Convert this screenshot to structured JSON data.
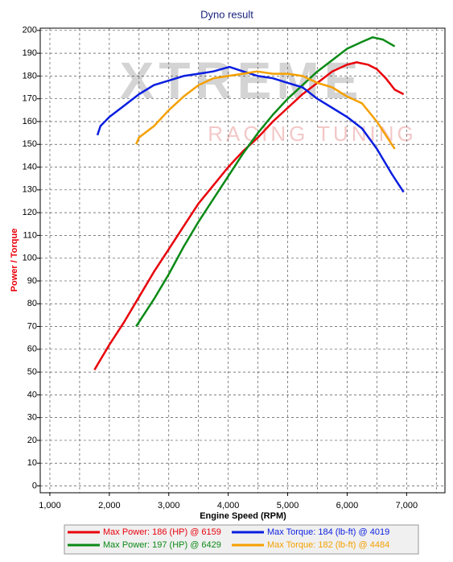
{
  "chart_data": {
    "type": "line",
    "title": "Dyno result",
    "x_label": "Engine Speed (RPM)",
    "y_label": "Power / Torque",
    "watermark": [
      "XTREME",
      "RACING TUNING"
    ],
    "xlim": [
      838,
      7645
    ],
    "ylim": [
      -3,
      201
    ],
    "xticks": [
      {
        "value": 1000,
        "label": "1,000"
      },
      {
        "value": 2000,
        "label": "2,000"
      },
      {
        "value": 3000,
        "label": "3,000"
      },
      {
        "value": 4000,
        "label": "4,000"
      },
      {
        "value": 5000,
        "label": "5,000"
      },
      {
        "value": 6000,
        "label": "6,000"
      },
      {
        "value": 7000,
        "label": "7,000"
      }
    ],
    "xminorticks": [
      1500,
      2500,
      3500,
      4500,
      5500,
      6500,
      7500
    ],
    "yticks": [
      0,
      10,
      20,
      30,
      40,
      50,
      60,
      70,
      80,
      90,
      100,
      110,
      120,
      130,
      140,
      150,
      160,
      170,
      180,
      190,
      200
    ],
    "grid": true,
    "series": [
      {
        "name": "Max Power: 186 (HP) @ 6159",
        "color": "#e8000b",
        "x": [
          1750,
          2000,
          2250,
          2500,
          2750,
          3000,
          3250,
          3500,
          3750,
          4000,
          4250,
          4500,
          4750,
          5000,
          5250,
          5500,
          5750,
          6000,
          6159,
          6350,
          6500,
          6650,
          6800,
          6950
        ],
        "values": [
          51,
          62,
          72,
          83,
          94,
          104,
          114,
          124,
          132,
          140,
          147,
          153,
          160,
          166,
          172,
          177,
          182,
          185,
          186,
          185,
          183,
          179,
          174,
          172
        ]
      },
      {
        "name": "Max Power: 197 (HP) @ 6429",
        "color": "#0a8a16",
        "x": [
          2450,
          2500,
          2750,
          3000,
          3250,
          3500,
          3750,
          4000,
          4250,
          4500,
          4750,
          5000,
          5250,
          5500,
          5750,
          6000,
          6250,
          6429,
          6600,
          6800
        ],
        "values": [
          70,
          72,
          82,
          93,
          105,
          116,
          126,
          136,
          146,
          155,
          163,
          170,
          176,
          182,
          187,
          192,
          195,
          197,
          196,
          193
        ]
      },
      {
        "name": "Max Torque: 184 (lb-ft) @ 4019",
        "color": "#0a1ee0",
        "x": [
          1800,
          1850,
          2000,
          2250,
          2500,
          2750,
          3000,
          3250,
          3500,
          3750,
          4019,
          4250,
          4500,
          4750,
          5000,
          5250,
          5500,
          5750,
          6000,
          6250,
          6500,
          6750,
          6950
        ],
        "values": [
          154,
          158,
          162,
          167,
          172,
          176,
          178,
          180,
          181,
          182,
          184,
          182,
          180,
          179,
          177,
          175,
          170,
          166,
          162,
          157,
          148,
          137,
          129
        ]
      },
      {
        "name": "Max Torque: 182 (lb-ft) @ 4484",
        "color": "#f5a000",
        "x": [
          2450,
          2500,
          2750,
          3000,
          3250,
          3500,
          3750,
          4000,
          4250,
          4484,
          4750,
          5000,
          5250,
          5500,
          5750,
          6000,
          6250,
          6500,
          6750,
          6800
        ],
        "values": [
          150,
          153,
          158,
          165,
          171,
          176,
          179,
          180,
          181,
          182,
          181,
          181,
          180,
          177,
          175,
          171,
          168,
          160,
          150,
          148
        ]
      }
    ]
  }
}
